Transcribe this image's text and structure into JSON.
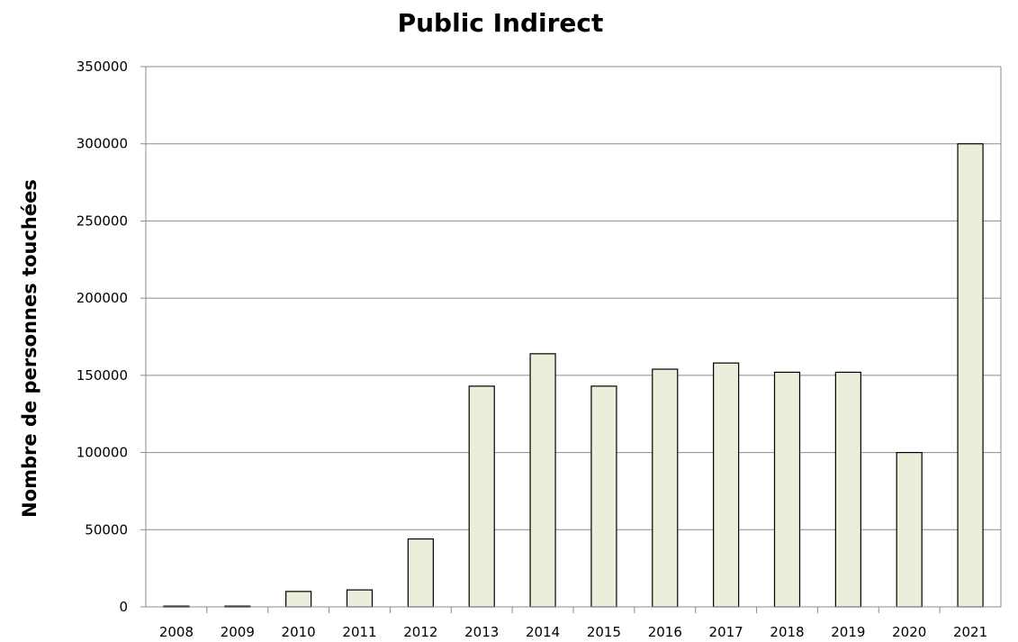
{
  "chart_data": {
    "type": "bar",
    "title": "Public Indirect",
    "xlabel": "",
    "ylabel": "Nombre de personnes touchées",
    "categories": [
      "2008",
      "2009",
      "2010",
      "2011",
      "2012",
      "2013",
      "2014",
      "2015",
      "2016",
      "2017",
      "2018",
      "2019",
      "2020",
      "2021"
    ],
    "values": [
      500,
      500,
      10000,
      11000,
      44000,
      143000,
      164000,
      143000,
      154000,
      158000,
      152000,
      152000,
      100000,
      300000
    ],
    "ylim": [
      0,
      350000
    ],
    "yticks": [
      "0",
      "50000",
      "100000",
      "150000",
      "200000",
      "250000",
      "300000",
      "350000"
    ],
    "grid": true,
    "legend": "none",
    "colors": {
      "bar_fill": "#eaeeda",
      "bar_stroke": "#000000",
      "grid": "#8c8c8c",
      "axis": "#8c8c8c"
    }
  }
}
